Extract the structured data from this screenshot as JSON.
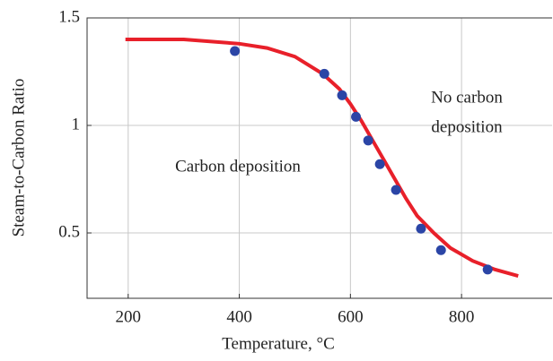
{
  "chart_data": {
    "type": "line",
    "xlabel": "Temperature, °C",
    "ylabel": "Steam-to-Carbon Ratio",
    "annotations": [
      "Carbon deposition",
      "No carbon",
      "deposition"
    ],
    "xlim": [
      126,
      963
    ],
    "ylim": [
      0.196,
      1.5
    ],
    "xticks": [
      200,
      400,
      600,
      800
    ],
    "yticks": [
      0.5,
      1,
      1.5
    ],
    "grid": true,
    "curve": {
      "color": "#e8202a",
      "x": [
        195,
        300,
        400,
        450,
        500,
        550,
        580,
        600,
        620,
        640,
        660,
        680,
        700,
        720,
        750,
        780,
        820,
        860,
        902
      ],
      "y": [
        1.4,
        1.4,
        1.38,
        1.36,
        1.32,
        1.24,
        1.17,
        1.1,
        1.02,
        0.93,
        0.84,
        0.75,
        0.66,
        0.58,
        0.5,
        0.43,
        0.37,
        0.33,
        0.3
      ]
    },
    "points": {
      "color": "#2b45a6",
      "x": [
        392,
        553,
        585,
        610,
        632,
        653,
        682,
        727,
        763,
        847
      ],
      "y": [
        1.346,
        1.24,
        1.14,
        1.04,
        0.93,
        0.82,
        0.7,
        0.52,
        0.42,
        0.33
      ]
    }
  }
}
